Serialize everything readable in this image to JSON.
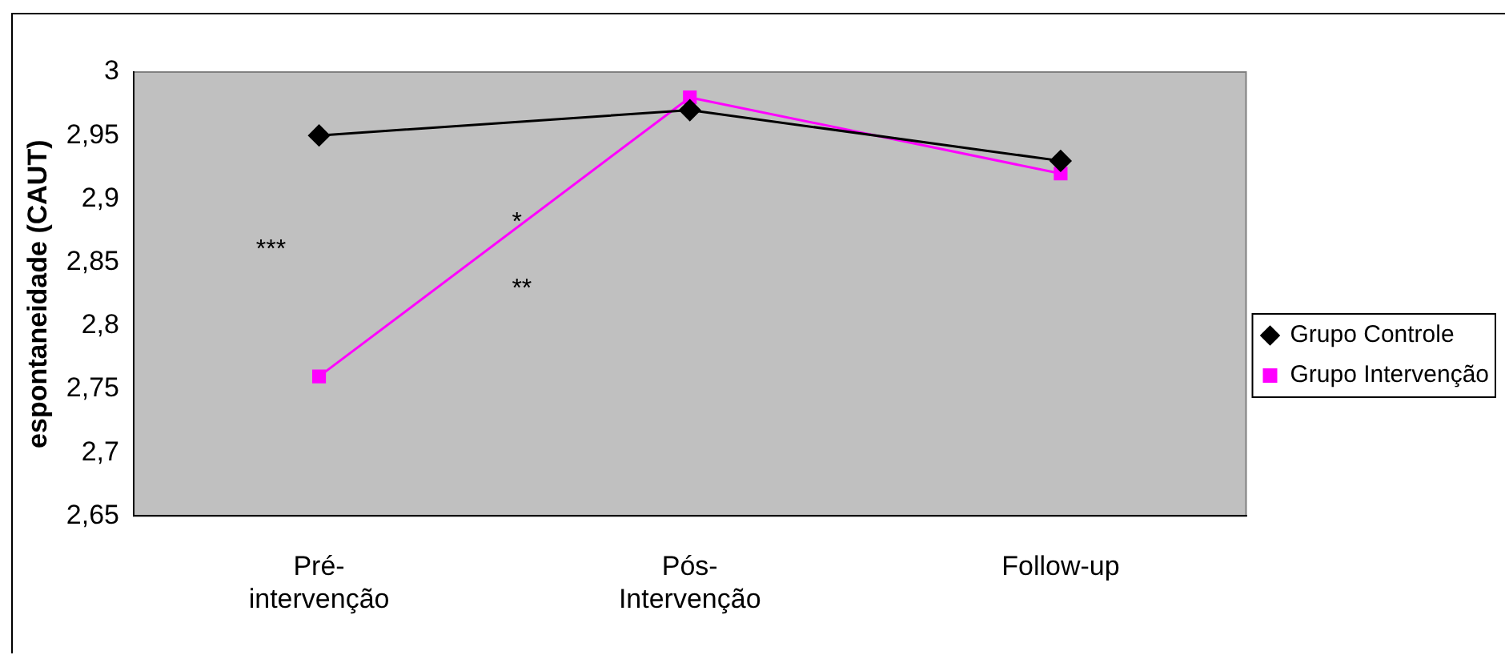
{
  "chart_data": {
    "type": "line",
    "ylabel": "espontaneidade (CAUT)",
    "categories": [
      "Pré-\nintervenção",
      "Pós-\nIntervenção",
      "Follow-up"
    ],
    "series": [
      {
        "name": "Grupo Controle",
        "color": "#000000",
        "marker": "diamond",
        "values": [
          2.95,
          2.97,
          2.93
        ]
      },
      {
        "name": "Grupo Intervenção",
        "color": "#ff00ff",
        "marker": "square",
        "values": [
          2.76,
          2.98,
          2.92
        ]
      }
    ],
    "ylim": [
      2.65,
      3
    ],
    "yticks": [
      {
        "value": 2.65,
        "label": "2,65"
      },
      {
        "value": 2.7,
        "label": "2,7"
      },
      {
        "value": 2.75,
        "label": "2,75"
      },
      {
        "value": 2.8,
        "label": "2,8"
      },
      {
        "value": 2.85,
        "label": "2,85"
      },
      {
        "value": 2.9,
        "label": "2,9"
      },
      {
        "value": 2.95,
        "label": "2,95"
      },
      {
        "value": 3,
        "label": "3"
      }
    ],
    "annotations": [
      "***",
      "*",
      "**"
    ],
    "grid": false,
    "legend": "right",
    "line_style": "solid"
  }
}
